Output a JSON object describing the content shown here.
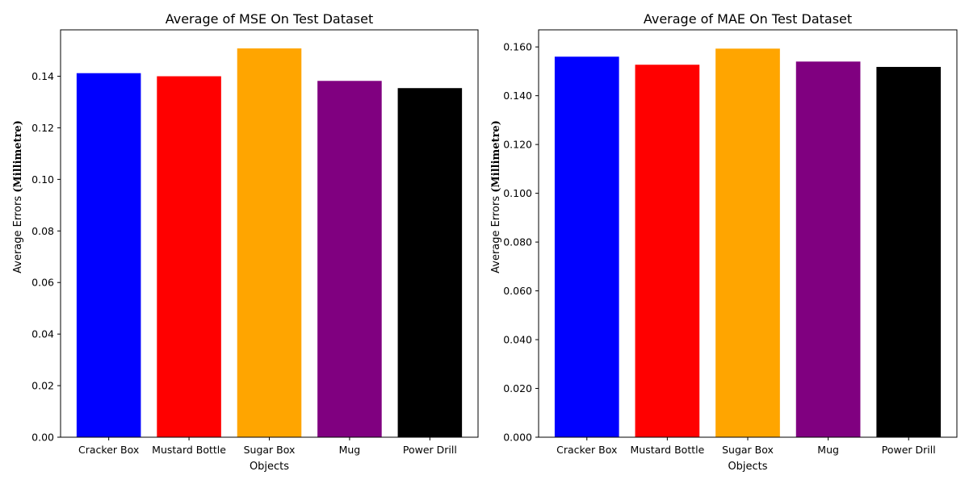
{
  "chart_data": [
    {
      "type": "bar",
      "title": "Average of MSE On Test Dataset",
      "xlabel": "Objects",
      "ylabel_prefix": "Average Errors ",
      "ylabel_unit": "(Millimetre)",
      "categories": [
        "Cracker Box",
        "Mustard Bottle",
        "Sugar Box",
        "Mug",
        "Power Drill"
      ],
      "values": [
        0.1412,
        0.14,
        0.1508,
        0.1382,
        0.1354
      ],
      "colors": [
        "#0000ff",
        "#ff0000",
        "#ffa500",
        "#800080",
        "#000000"
      ],
      "ylim": [
        0,
        0.158
      ],
      "yticks": [
        "0.00",
        "0.02",
        "0.04",
        "0.06",
        "0.08",
        "0.10",
        "0.12",
        "0.14"
      ],
      "grid": false,
      "legend": "none"
    },
    {
      "type": "bar",
      "title": "Average of MAE On Test Dataset",
      "xlabel": "Objects",
      "ylabel_prefix": "Average Errors ",
      "ylabel_unit": "(Millimetre)",
      "categories": [
        "Cracker Box",
        "Mustard Bottle",
        "Sugar Box",
        "Mug",
        "Power Drill"
      ],
      "values": [
        0.156,
        0.1527,
        0.1593,
        0.154,
        0.1518
      ],
      "colors": [
        "#0000ff",
        "#ff0000",
        "#ffa500",
        "#800080",
        "#000000"
      ],
      "ylim": [
        0,
        0.167
      ],
      "yticks": [
        "0.000",
        "0.020",
        "0.040",
        "0.060",
        "0.080",
        "0.100",
        "0.120",
        "0.140",
        "0.160"
      ],
      "grid": false,
      "legend": "none"
    }
  ]
}
